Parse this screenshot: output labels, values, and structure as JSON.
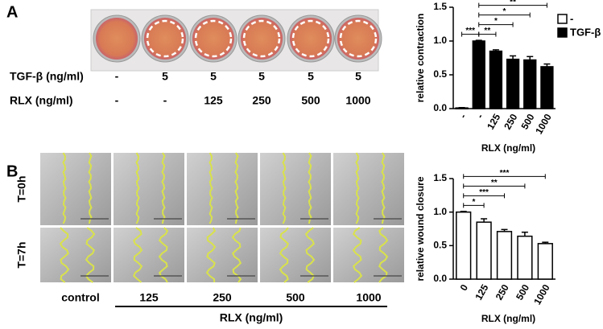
{
  "panel_labels": [
    "A",
    "B"
  ],
  "plate": {
    "rows": [
      {
        "label": "TGF-β (ng/ml)",
        "values": [
          "-",
          "5",
          "5",
          "5",
          "5",
          "5"
        ]
      },
      {
        "label": "RLX (ng/ml)",
        "values": [
          "-",
          "-",
          "125",
          "250",
          "500",
          "1000"
        ]
      }
    ]
  },
  "wound": {
    "row_labels": [
      "T=0h",
      "T=7h"
    ],
    "column_labels": [
      "control",
      "125",
      "250",
      "500",
      "1000"
    ],
    "group_label": "RLX (ng/ml)"
  },
  "chart_data": [
    {
      "type": "bar",
      "y_label": "relative contraction",
      "x_label": "RLX (ng/ml)",
      "categories": [
        "-",
        "-",
        "125",
        "250",
        "500",
        "1000"
      ],
      "series": [
        {
          "name": "-",
          "color": "#ffffff",
          "values": [
            0.01,
            null,
            null,
            null,
            null,
            null
          ],
          "errors": [
            0.005,
            null,
            null,
            null,
            null,
            null
          ]
        },
        {
          "name": "TGF-β",
          "color": "#000000",
          "values": [
            null,
            1.0,
            0.85,
            0.73,
            0.72,
            0.62
          ],
          "errors": [
            null,
            0.01,
            0.02,
            0.05,
            0.05,
            0.04
          ]
        }
      ],
      "ylim": [
        0,
        1.5
      ],
      "yticks": [
        {
          "value": 0,
          "label": "0.0"
        },
        0.5,
        {
          "value": 1,
          "label": "1.0"
        },
        1.5
      ],
      "significance": [
        {
          "from": 0,
          "to": 1,
          "label": "***"
        },
        {
          "from": 1,
          "to": 2,
          "label": "**"
        },
        {
          "from": 1,
          "to": 3,
          "label": "*"
        },
        {
          "from": 1,
          "to": 4,
          "label": "*"
        },
        {
          "from": 1,
          "to": 5,
          "label": "**"
        }
      ],
      "legend": "right"
    },
    {
      "type": "bar",
      "y_label": "relative wound closure",
      "x_label": "RLX (ng/ml)",
      "categories": [
        "0",
        "125",
        "250",
        "500",
        "1000"
      ],
      "values": [
        1.0,
        0.85,
        0.71,
        0.64,
        0.53
      ],
      "errors": [
        0.01,
        0.05,
        0.03,
        0.06,
        0.02
      ],
      "color": "#ffffff",
      "ylim": [
        0,
        1.5
      ],
      "yticks": [
        {
          "value": 0,
          "label": "0.0"
        },
        0.5,
        {
          "value": 1,
          "label": "1.0"
        },
        1.5
      ],
      "significance": [
        {
          "from": 0,
          "to": 1,
          "label": "*"
        },
        {
          "from": 0,
          "to": 2,
          "label": "***"
        },
        {
          "from": 0,
          "to": 3,
          "label": "**"
        },
        {
          "from": 0,
          "to": 4,
          "label": "***"
        }
      ]
    }
  ]
}
